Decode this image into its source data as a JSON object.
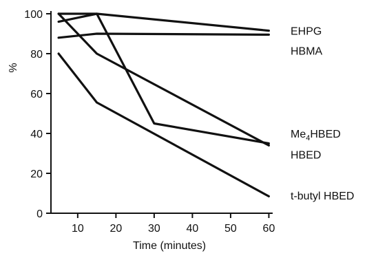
{
  "chart_data": {
    "type": "line",
    "title": "",
    "xlabel": "Time (minutes)",
    "ylabel": "%",
    "xlim": [
      3,
      61
    ],
    "ylim": [
      0,
      100
    ],
    "xticks": [
      10,
      20,
      30,
      40,
      50,
      60
    ],
    "yticks": [
      0,
      20,
      40,
      60,
      80,
      100
    ],
    "grid": false,
    "legend": "direct labels at right end of lines",
    "series": [
      {
        "name": "EHPG",
        "label_html": "EHPG",
        "x": [
          5,
          15,
          60
        ],
        "y": [
          96,
          100,
          91.5
        ]
      },
      {
        "name": "HBMA",
        "label_html": "HBMA",
        "x": [
          5,
          15,
          60
        ],
        "y": [
          88,
          90,
          89.5
        ]
      },
      {
        "name": "Me4HBED",
        "label_html": "Me<tspan dy='4' font-size='11'>4</tspan><tspan dy='-4'>HBED</tspan>",
        "x": [
          5,
          15,
          60
        ],
        "y": [
          100,
          80,
          34
        ]
      },
      {
        "name": "HBED",
        "label_html": "HBED",
        "x": [
          5,
          15,
          30,
          60
        ],
        "y": [
          100,
          100,
          45,
          35
        ]
      },
      {
        "name": "t-butyl HBED",
        "label_html": "t-butyl HBED",
        "x": [
          5,
          15,
          60
        ],
        "y": [
          80,
          55.5,
          8.5
        ]
      }
    ],
    "labels": [
      {
        "series": "EHPG",
        "y": 91.5
      },
      {
        "series": "HBMA",
        "y": 81.5
      },
      {
        "series": "Me4HBED",
        "y": 40
      },
      {
        "series": "HBED",
        "y": 29.5
      },
      {
        "series": "t-butyl HBED",
        "y": 9
      }
    ]
  }
}
